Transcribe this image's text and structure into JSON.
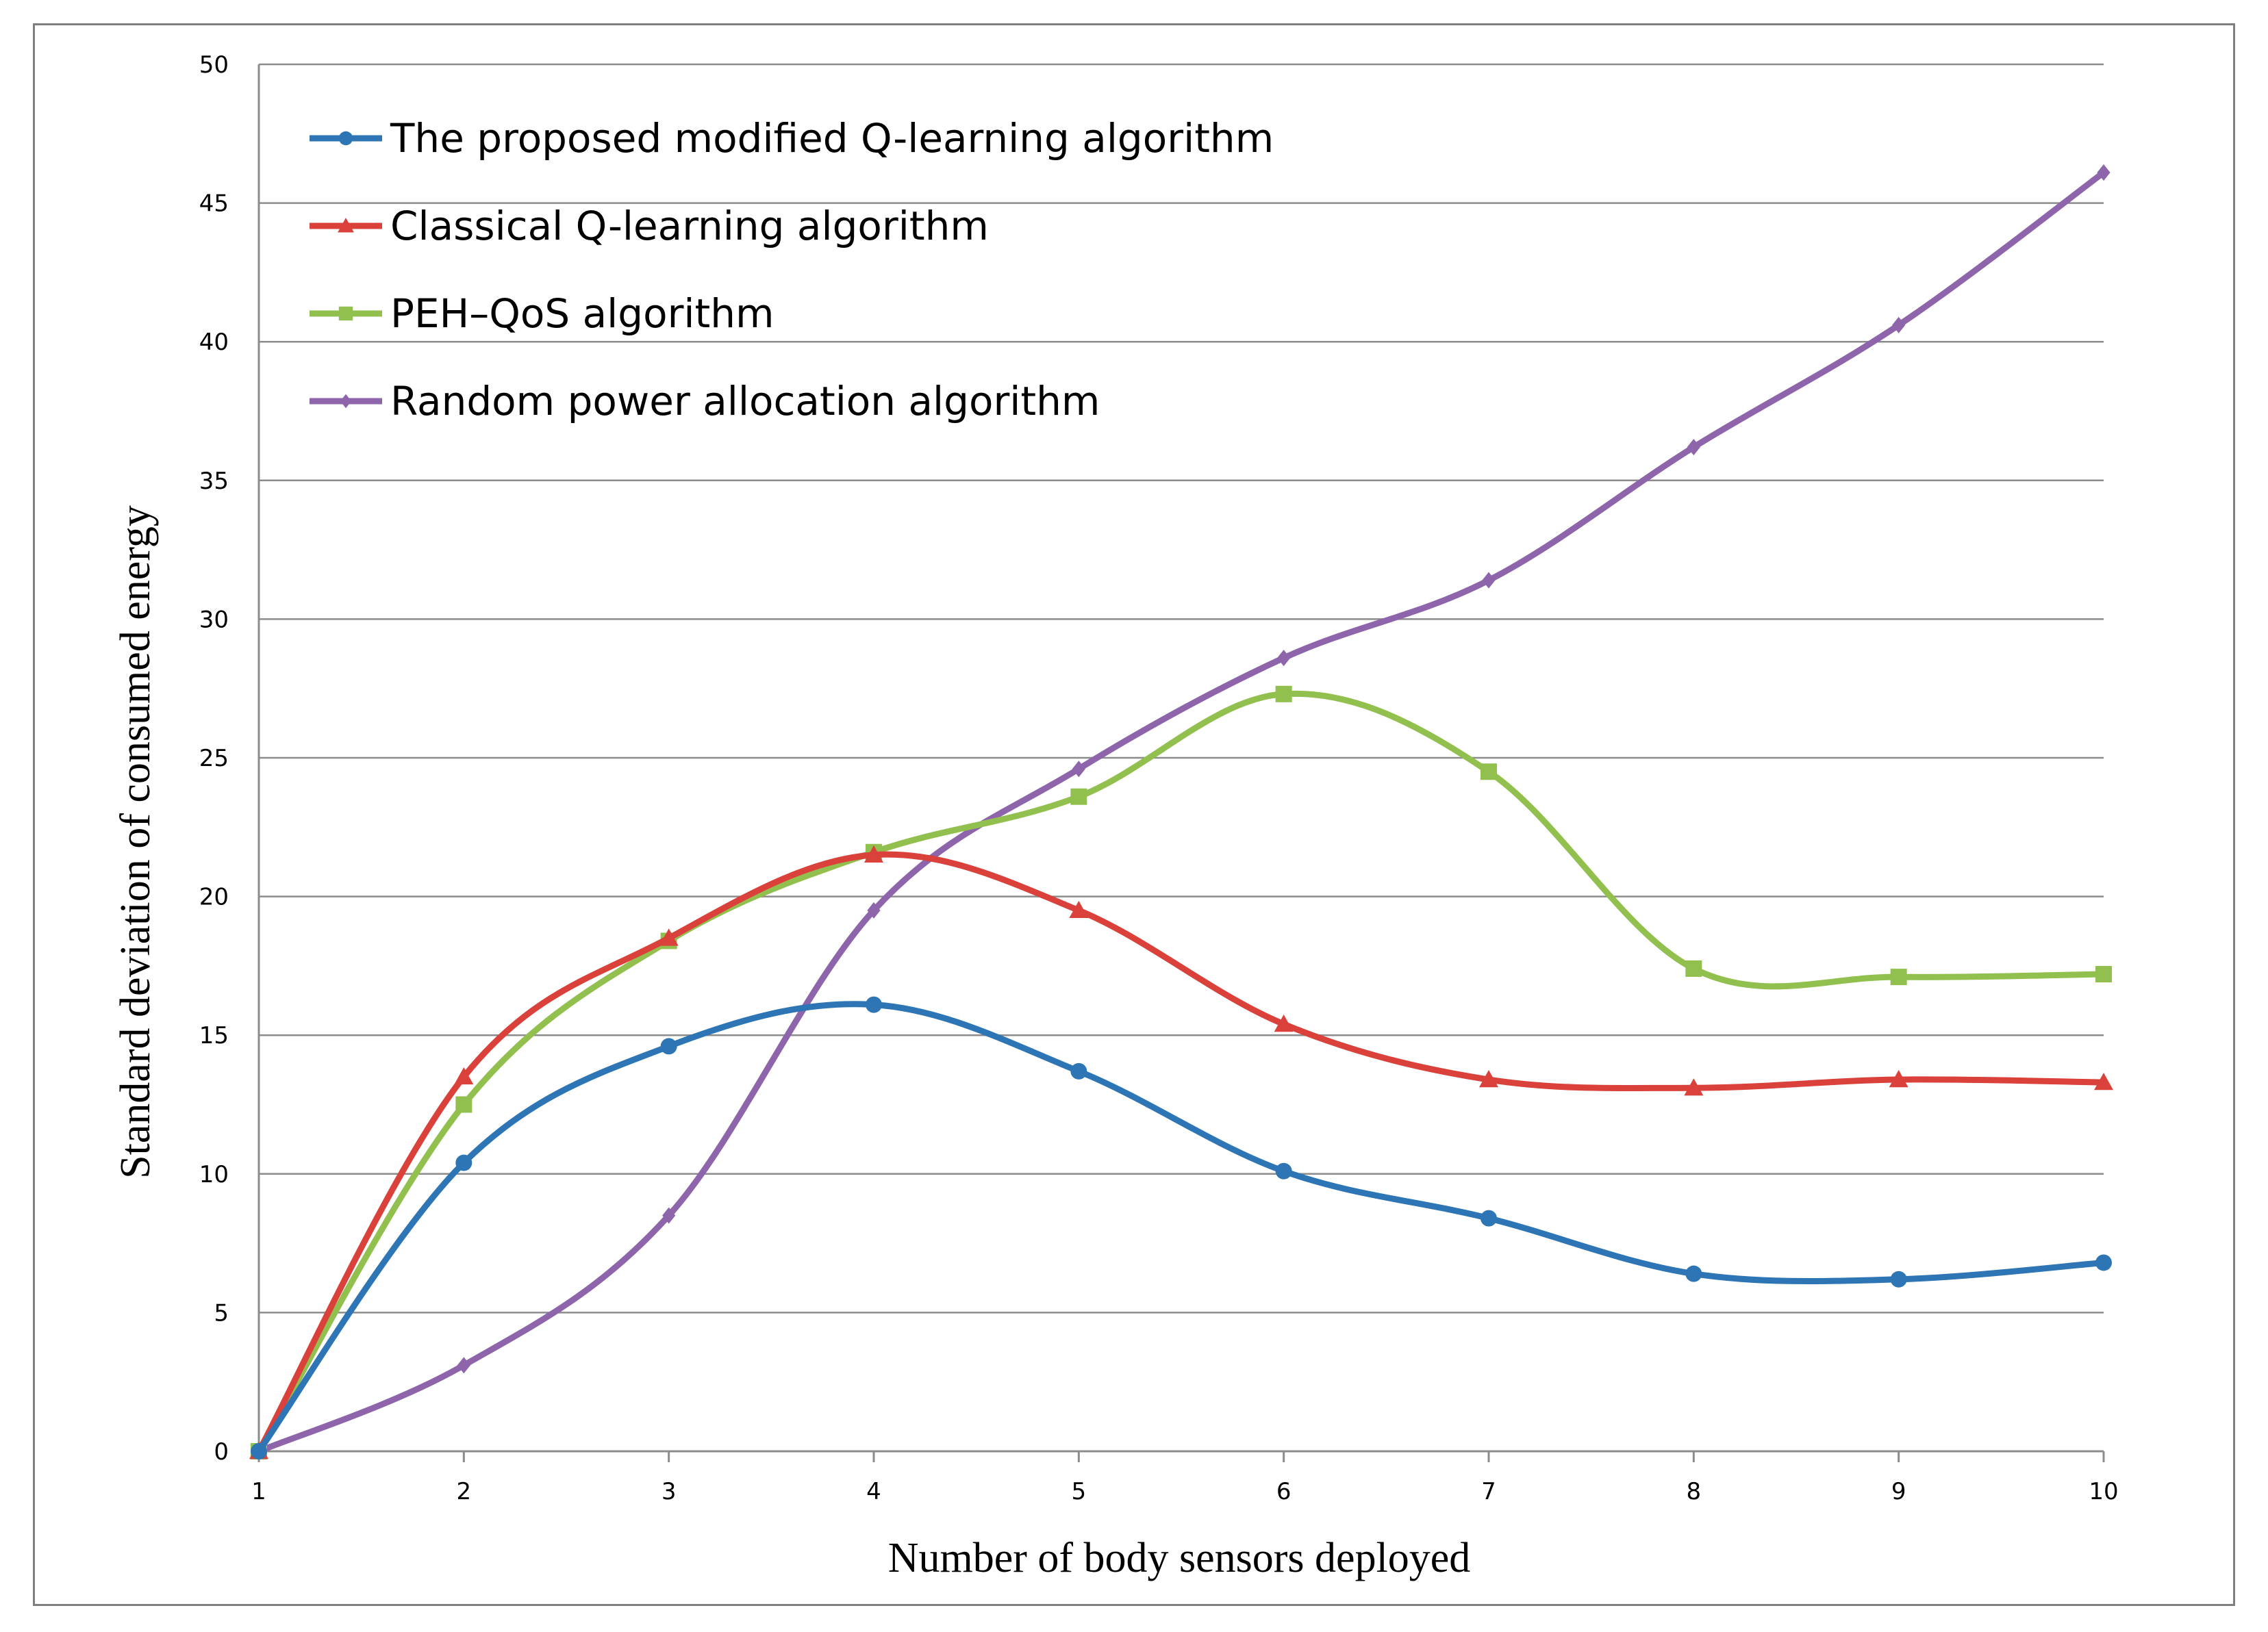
{
  "chart_data": {
    "type": "line",
    "title": "",
    "xlabel": "Number of body sensors deployed",
    "ylabel": "Standard deviation  of consumed energy",
    "x": [
      1,
      2,
      3,
      4,
      5,
      6,
      7,
      8,
      9,
      10
    ],
    "xlim": [
      1,
      10
    ],
    "ylim": [
      0,
      50
    ],
    "yticks": [
      0,
      5,
      10,
      15,
      20,
      25,
      30,
      35,
      40,
      45,
      50
    ],
    "grid": "horizontal",
    "legend_position": "top-left",
    "series": [
      {
        "name": "The proposed modified Q-learning algorithm",
        "color": "#2e75b6",
        "marker": "circle",
        "values": [
          0,
          10.4,
          14.6,
          16.1,
          13.7,
          10.1,
          8.4,
          6.4,
          6.2,
          6.8
        ]
      },
      {
        "name": "Classical Q-learning algorithm",
        "color": "#d9413a",
        "marker": "triangle",
        "values": [
          0,
          13.5,
          18.5,
          21.5,
          19.5,
          15.4,
          13.4,
          13.1,
          13.4,
          13.3
        ]
      },
      {
        "name": "PEH–QoS algorithm",
        "color": "#92c04f",
        "marker": "square",
        "values": [
          0,
          12.5,
          18.4,
          21.6,
          23.6,
          27.3,
          24.5,
          17.4,
          17.1,
          17.2
        ]
      },
      {
        "name": "Random power allocation algorithm",
        "color": "#8e64ab",
        "marker": "diamond",
        "values": [
          0,
          3.1,
          8.5,
          19.5,
          24.6,
          28.6,
          31.4,
          36.2,
          40.6,
          46.1
        ]
      }
    ]
  }
}
